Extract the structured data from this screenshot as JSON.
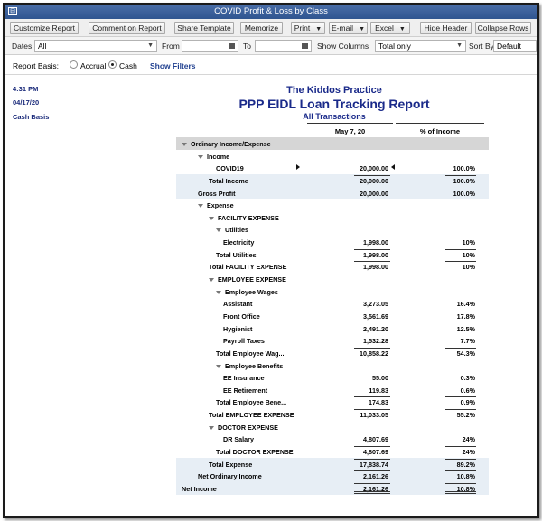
{
  "window": {
    "title": "COVID Profit & Loss by Class",
    "sys_icon": "⊟"
  },
  "toolbar": {
    "customize": "Customize Report",
    "comment": "Comment on Report",
    "share": "Share Template",
    "memorize": "Memorize",
    "print": "Print",
    "email": "E-mail",
    "excel": "Excel",
    "hide_header": "Hide Header",
    "collapse": "Collapse Rows"
  },
  "filters": {
    "dates_label": "Dates",
    "dates_value": "All",
    "from_label": "From",
    "from_value": "",
    "to_label": "To",
    "to_value": "",
    "show_columns_label": "Show Columns",
    "show_columns_value": "Total only",
    "sort_by_label": "Sort By",
    "sort_by_value": "Default"
  },
  "basis": {
    "label": "Report Basis:",
    "accrual": "Accrual",
    "cash": "Cash",
    "selected": "cash",
    "show_filters": "Show Filters"
  },
  "report": {
    "time": "4:31 PM",
    "date": "04/17/20",
    "basis": "Cash Basis",
    "company": "The Kiddos Practice",
    "title": "PPP EIDL Loan Tracking Report",
    "subtitle": "All Transactions",
    "col1": "May 7, 20",
    "col2": "% of Income",
    "rows": [
      {
        "label": "Ordinary Income/Expense",
        "level": 0,
        "tri": true,
        "v1": "",
        "v2": "",
        "style": "section-hdr"
      },
      {
        "label": "Income",
        "level": 1,
        "tri": true,
        "v1": "",
        "v2": ""
      },
      {
        "label": "COVID19",
        "level": 3,
        "v1": "20,000.00",
        "v2": "100.0%",
        "marks": true
      },
      {
        "label": "Total Income",
        "level": 2,
        "v1": "20,000.00",
        "v2": "100.0%",
        "style": "shade",
        "line": true
      },
      {
        "label": "Gross Profit",
        "level": 1,
        "v1": "20,000.00",
        "v2": "100.0%",
        "style": "shade"
      },
      {
        "label": "Expense",
        "level": 1,
        "tri": true,
        "v1": "",
        "v2": ""
      },
      {
        "label": "FACILITY EXPENSE",
        "level": 2,
        "tri": true,
        "v1": "",
        "v2": ""
      },
      {
        "label": "Utilities",
        "level": 3,
        "tri": true,
        "v1": "",
        "v2": ""
      },
      {
        "label": "Electricity",
        "level": 4,
        "v1": "1,998.00",
        "v2": "10%"
      },
      {
        "label": "Total Utilities",
        "level": 3,
        "v1": "1,998.00",
        "v2": "10%",
        "line": true
      },
      {
        "label": "Total FACILITY EXPENSE",
        "level": 2,
        "v1": "1,998.00",
        "v2": "10%",
        "line": true
      },
      {
        "label": "EMPLOYEE EXPENSE",
        "level": 2,
        "tri": true,
        "v1": "",
        "v2": ""
      },
      {
        "label": "Employee Wages",
        "level": 3,
        "tri": true,
        "v1": "",
        "v2": ""
      },
      {
        "label": "Assistant",
        "level": 4,
        "v1": "3,273.05",
        "v2": "16.4%"
      },
      {
        "label": "Front Office",
        "level": 4,
        "v1": "3,561.69",
        "v2": "17.8%"
      },
      {
        "label": "Hygienist",
        "level": 4,
        "v1": "2,491.20",
        "v2": "12.5%"
      },
      {
        "label": "Payroll Taxes",
        "level": 4,
        "v1": "1,532.28",
        "v2": "7.7%"
      },
      {
        "label": "Total Employee Wag...",
        "level": 3,
        "v1": "10,858.22",
        "v2": "54.3%",
        "line": true
      },
      {
        "label": "Employee Benefits",
        "level": 3,
        "tri": true,
        "v1": "",
        "v2": ""
      },
      {
        "label": "EE Insurance",
        "level": 4,
        "v1": "55.00",
        "v2": "0.3%"
      },
      {
        "label": "EE Retirement",
        "level": 4,
        "v1": "119.83",
        "v2": "0.6%"
      },
      {
        "label": "Total Employee Bene...",
        "level": 3,
        "v1": "174.83",
        "v2": "0.9%",
        "line": true
      },
      {
        "label": "Total EMPLOYEE EXPENSE",
        "level": 2,
        "v1": "11,033.05",
        "v2": "55.2%",
        "line": true
      },
      {
        "label": "DOCTOR EXPENSE",
        "level": 2,
        "tri": true,
        "v1": "",
        "v2": ""
      },
      {
        "label": "DR Salary",
        "level": 4,
        "v1": "4,807.69",
        "v2": "24%"
      },
      {
        "label": "Total DOCTOR EXPENSE",
        "level": 3,
        "v1": "4,807.69",
        "v2": "24%",
        "line": true
      },
      {
        "label": "Total Expense",
        "level": 2,
        "v1": "17,838.74",
        "v2": "89.2%",
        "style": "shade",
        "line": true
      },
      {
        "label": "Net Ordinary Income",
        "level": 1,
        "v1": "2,161.26",
        "v2": "10.8%",
        "style": "shade",
        "line": true
      },
      {
        "label": "Net Income",
        "level": 0,
        "v1": "2,161.26",
        "v2": "10.8%",
        "style": "shade",
        "dline": true
      }
    ]
  }
}
